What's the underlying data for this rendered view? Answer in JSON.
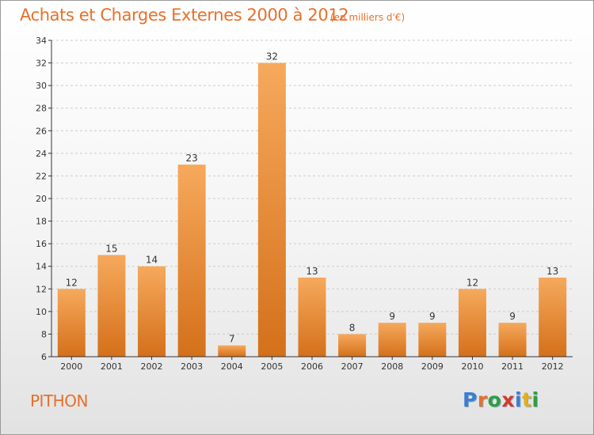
{
  "title": "Achats et Charges Externes 2000 à 2012",
  "subtitle": "(en milliers d'€)",
  "commune": "PITHON",
  "logo": {
    "text": "Proxiti",
    "letter_colors": [
      "#3a7fd0",
      "#e8702a",
      "#2f9e3f",
      "#d43a2a",
      "#3a7fd0",
      "#e0b020",
      "#2f9e3f"
    ]
  },
  "colors": {
    "bar_light": "#f6a95c",
    "bar_dark": "#d4701a",
    "axis": "#333333",
    "grid": "#cccccc",
    "accent": "#e8702a"
  },
  "chart_data": {
    "type": "bar",
    "categories": [
      "2000",
      "2001",
      "2002",
      "2003",
      "2004",
      "2005",
      "2006",
      "2007",
      "2008",
      "2009",
      "2010",
      "2011",
      "2012"
    ],
    "values": [
      12,
      15,
      14,
      23,
      7,
      32,
      13,
      8,
      9,
      9,
      12,
      9,
      13
    ],
    "title": "Achats et Charges Externes 2000 à 2012",
    "ylim": [
      6,
      34
    ],
    "yticks": [
      6,
      8,
      10,
      12,
      14,
      16,
      18,
      20,
      22,
      24,
      26,
      28,
      30,
      32,
      34
    ],
    "grid": true,
    "data_labels": true
  }
}
